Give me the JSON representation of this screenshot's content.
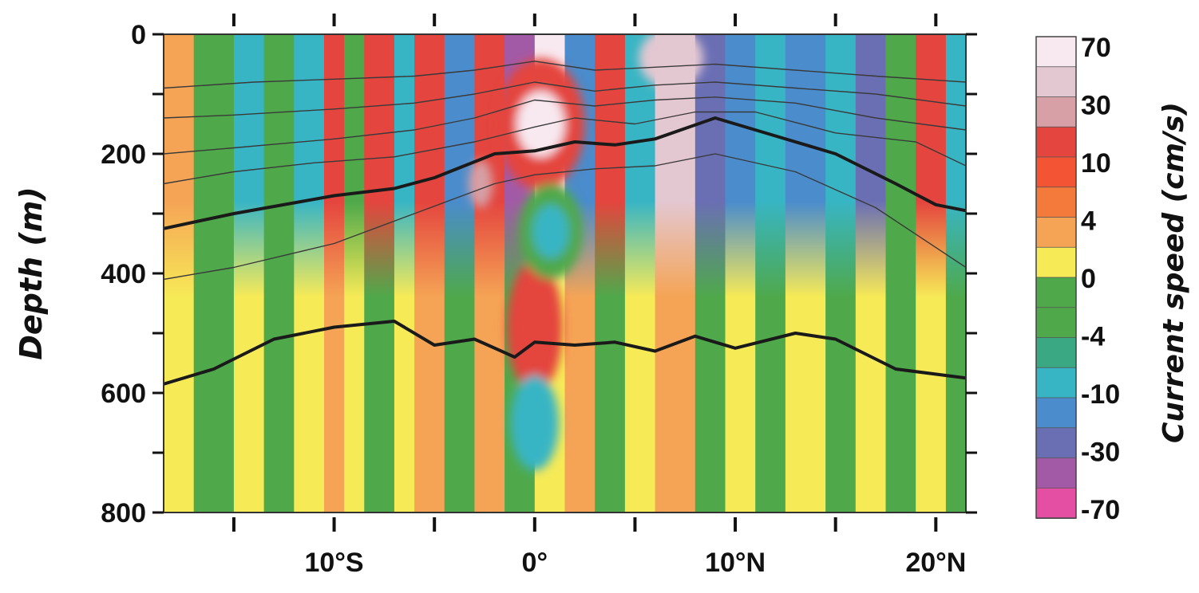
{
  "chart_data": {
    "type": "heatmap",
    "title": "",
    "subtitle": "",
    "xlabel": "",
    "ylabel": "Depth (m)",
    "x_unit": "degrees latitude (S negative, N positive)",
    "y_unit": "m",
    "xlim": [
      -18.5,
      21.5
    ],
    "ylim": [
      800,
      0
    ],
    "y_reversed": true,
    "x_ticks": [
      {
        "value": -15,
        "label": ""
      },
      {
        "value": -10,
        "label": "10°S"
      },
      {
        "value": -5,
        "label": ""
      },
      {
        "value": 0,
        "label": "0°"
      },
      {
        "value": 5,
        "label": ""
      },
      {
        "value": 10,
        "label": "10°N"
      },
      {
        "value": 15,
        "label": ""
      },
      {
        "value": 20,
        "label": "20°N"
      }
    ],
    "y_ticks": [
      {
        "value": 0,
        "label": "0"
      },
      {
        "value": 100,
        "label": ""
      },
      {
        "value": 200,
        "label": "200"
      },
      {
        "value": 300,
        "label": ""
      },
      {
        "value": 400,
        "label": "400"
      },
      {
        "value": 500,
        "label": ""
      },
      {
        "value": 600,
        "label": "600"
      },
      {
        "value": 700,
        "label": ""
      },
      {
        "value": 800,
        "label": "800"
      }
    ],
    "colorbar": {
      "label": "Current speed (cm/s)",
      "tick_labels": [
        "70",
        "30",
        "10",
        "4",
        "0",
        "-4",
        "-10",
        "-30",
        "-70"
      ],
      "tick_values": [
        70,
        30,
        10,
        4,
        0,
        -4,
        -10,
        -30,
        -70
      ],
      "levels_top_to_bottom": [
        {
          "color": "#f8e9f0"
        },
        {
          "color": "#e3c7d1"
        },
        {
          "color": "#d6a0a6"
        },
        {
          "color": "#e4453e"
        },
        {
          "color": "#f25434"
        },
        {
          "color": "#f47a3c"
        },
        {
          "color": "#f5a455"
        },
        {
          "color": "#f7ea57"
        },
        {
          "color": "#4fa94b"
        },
        {
          "color": "#4fa94b"
        },
        {
          "color": "#3aa882"
        },
        {
          "color": "#38b5c4"
        },
        {
          "color": "#4a8ccc"
        },
        {
          "color": "#6a6fb4"
        },
        {
          "color": "#a35aa6"
        },
        {
          "color": "#e44ea3"
        }
      ]
    },
    "column_bands": [
      {
        "x0": -18.5,
        "x1": -17.0,
        "top": "#f5a455",
        "bottom": "#f7ea57"
      },
      {
        "x0": -17.0,
        "x1": -15.0,
        "top": "#4fa94b",
        "bottom": "#4fa94b"
      },
      {
        "x0": -15.0,
        "x1": -13.5,
        "top": "#38b5c4",
        "bottom": "#f7ea57"
      },
      {
        "x0": -13.5,
        "x1": -12.0,
        "top": "#4fa94b",
        "bottom": "#4fa94b"
      },
      {
        "x0": -12.0,
        "x1": -10.5,
        "top": "#38b5c4",
        "bottom": "#f7ea57"
      },
      {
        "x0": -10.5,
        "x1": -9.5,
        "top": "#e4453e",
        "bottom": "#f5a455"
      },
      {
        "x0": -9.5,
        "x1": -8.5,
        "top": "#4fa94b",
        "bottom": "#f7ea57"
      },
      {
        "x0": -8.5,
        "x1": -7.0,
        "top": "#e4453e",
        "bottom": "#4fa94b"
      },
      {
        "x0": -7.0,
        "x1": -6.0,
        "top": "#38b5c4",
        "bottom": "#f7ea57"
      },
      {
        "x0": -6.0,
        "x1": -4.5,
        "top": "#e4453e",
        "bottom": "#f5a455"
      },
      {
        "x0": -4.5,
        "x1": -3.0,
        "top": "#4a8ccc",
        "bottom": "#4fa94b"
      },
      {
        "x0": -3.0,
        "x1": -1.5,
        "top": "#e4453e",
        "bottom": "#f5a455"
      },
      {
        "x0": -1.5,
        "x1": 0.0,
        "top": "#a35aa6",
        "bottom": "#4fa94b"
      },
      {
        "x0": 0.0,
        "x1": 1.5,
        "top": "#f8e9f0",
        "bottom": "#f7ea57"
      },
      {
        "x0": 1.5,
        "x1": 3.0,
        "top": "#4a8ccc",
        "bottom": "#f5a455"
      },
      {
        "x0": 3.0,
        "x1": 4.5,
        "top": "#e4453e",
        "bottom": "#4fa94b"
      },
      {
        "x0": 4.5,
        "x1": 6.0,
        "top": "#38b5c4",
        "bottom": "#f7ea57"
      },
      {
        "x0": 6.0,
        "x1": 8.0,
        "top": "#e3c7d1",
        "bottom": "#f5a455"
      },
      {
        "x0": 8.0,
        "x1": 9.5,
        "top": "#6a6fb4",
        "bottom": "#4fa94b"
      },
      {
        "x0": 9.5,
        "x1": 11.0,
        "top": "#4a8ccc",
        "bottom": "#f7ea57"
      },
      {
        "x0": 11.0,
        "x1": 12.5,
        "top": "#38b5c4",
        "bottom": "#4fa94b"
      },
      {
        "x0": 12.5,
        "x1": 14.5,
        "top": "#4a8ccc",
        "bottom": "#f7ea57"
      },
      {
        "x0": 14.5,
        "x1": 16.0,
        "top": "#38b5c4",
        "bottom": "#4fa94b"
      },
      {
        "x0": 16.0,
        "x1": 17.5,
        "top": "#6a6fb4",
        "bottom": "#f7ea57"
      },
      {
        "x0": 17.5,
        "x1": 19.0,
        "top": "#4fa94b",
        "bottom": "#4fa94b"
      },
      {
        "x0": 19.0,
        "x1": 20.5,
        "top": "#e4453e",
        "bottom": "#f7ea57"
      },
      {
        "x0": 20.5,
        "x1": 21.5,
        "top": "#38b5c4",
        "bottom": "#4fa94b"
      }
    ],
    "blobs": [
      {
        "cx": 0.3,
        "cy": 150,
        "rx": 2.2,
        "ry": 110,
        "color": "#e4453e"
      },
      {
        "cx": 0.3,
        "cy": 150,
        "rx": 1.2,
        "ry": 55,
        "color": "#f8e9f0"
      },
      {
        "cx": 0.0,
        "cy": 490,
        "rx": 1.4,
        "ry": 110,
        "color": "#e4453e"
      },
      {
        "cx": 0.0,
        "cy": 650,
        "rx": 1.2,
        "ry": 80,
        "color": "#38b5c4"
      },
      {
        "cx": 0.8,
        "cy": 330,
        "rx": 1.6,
        "ry": 80,
        "color": "#4fa94b"
      },
      {
        "cx": 0.8,
        "cy": 330,
        "rx": 0.9,
        "ry": 45,
        "color": "#38b5c4"
      },
      {
        "cx": 6.8,
        "cy": 40,
        "rx": 1.6,
        "ry": 50,
        "color": "#e3c7d1"
      },
      {
        "cx": -2.7,
        "cy": 250,
        "rx": 0.6,
        "ry": 40,
        "color": "#d6a0a6"
      }
    ],
    "contours": [
      {
        "name": "",
        "bold": true,
        "points": [
          [
            -18.5,
            325
          ],
          [
            -15,
            300
          ],
          [
            -10,
            270
          ],
          [
            -7,
            258
          ],
          [
            -5,
            240
          ],
          [
            -2,
            200
          ],
          [
            0,
            195
          ],
          [
            2,
            180
          ],
          [
            4,
            185
          ],
          [
            6,
            175
          ],
          [
            9,
            140
          ],
          [
            12,
            170
          ],
          [
            15,
            200
          ],
          [
            18,
            250
          ],
          [
            20,
            285
          ],
          [
            21.5,
            295
          ]
        ]
      },
      {
        "name": "",
        "bold": true,
        "points": [
          [
            -18.5,
            585
          ],
          [
            -16,
            560
          ],
          [
            -13,
            510
          ],
          [
            -10,
            490
          ],
          [
            -7,
            480
          ],
          [
            -5,
            520
          ],
          [
            -3,
            510
          ],
          [
            -1,
            540
          ],
          [
            0,
            515
          ],
          [
            2,
            520
          ],
          [
            4,
            515
          ],
          [
            6,
            530
          ],
          [
            8,
            505
          ],
          [
            10,
            525
          ],
          [
            13,
            500
          ],
          [
            15,
            510
          ],
          [
            18,
            560
          ],
          [
            21.5,
            575
          ]
        ]
      },
      {
        "name": "",
        "bold": false,
        "points": [
          [
            -18.5,
            410
          ],
          [
            -15,
            390
          ],
          [
            -10,
            350
          ],
          [
            -6,
            300
          ],
          [
            -2,
            250
          ],
          [
            0,
            235
          ],
          [
            3,
            225
          ],
          [
            6,
            220
          ],
          [
            9,
            200
          ],
          [
            13,
            230
          ],
          [
            17,
            290
          ],
          [
            21.5,
            390
          ]
        ]
      },
      {
        "name": "",
        "bold": false,
        "points": [
          [
            -18.5,
            250
          ],
          [
            -15,
            230
          ],
          [
            -11,
            215
          ],
          [
            -7,
            205
          ],
          [
            -3,
            180
          ],
          [
            0,
            155
          ],
          [
            2,
            140
          ],
          [
            5,
            150
          ],
          [
            8,
            130
          ],
          [
            11,
            130
          ],
          [
            15,
            165
          ],
          [
            19,
            180
          ],
          [
            21.5,
            220
          ]
        ]
      },
      {
        "name": "",
        "bold": false,
        "points": [
          [
            -18.5,
            200
          ],
          [
            -15,
            190
          ],
          [
            -10,
            175
          ],
          [
            -6,
            160
          ],
          [
            -3,
            140
          ],
          [
            0,
            110
          ],
          [
            3,
            120
          ],
          [
            6,
            110
          ],
          [
            9,
            105
          ],
          [
            13,
            115
          ],
          [
            17,
            140
          ],
          [
            21.5,
            160
          ]
        ]
      },
      {
        "name": "",
        "bold": false,
        "points": [
          [
            -18.5,
            140
          ],
          [
            -15,
            135
          ],
          [
            -10,
            125
          ],
          [
            -6,
            115
          ],
          [
            -3,
            100
          ],
          [
            0,
            80
          ],
          [
            3,
            95
          ],
          [
            6,
            85
          ],
          [
            9,
            80
          ],
          [
            13,
            90
          ],
          [
            17,
            100
          ],
          [
            21.5,
            120
          ]
        ]
      },
      {
        "name": "",
        "bold": false,
        "points": [
          [
            -18.5,
            90
          ],
          [
            -14,
            80
          ],
          [
            -10,
            75
          ],
          [
            -6,
            70
          ],
          [
            -3,
            60
          ],
          [
            0,
            45
          ],
          [
            3,
            60
          ],
          [
            6,
            55
          ],
          [
            9,
            50
          ],
          [
            13,
            60
          ],
          [
            17,
            70
          ],
          [
            21.5,
            80
          ]
        ]
      }
    ]
  }
}
